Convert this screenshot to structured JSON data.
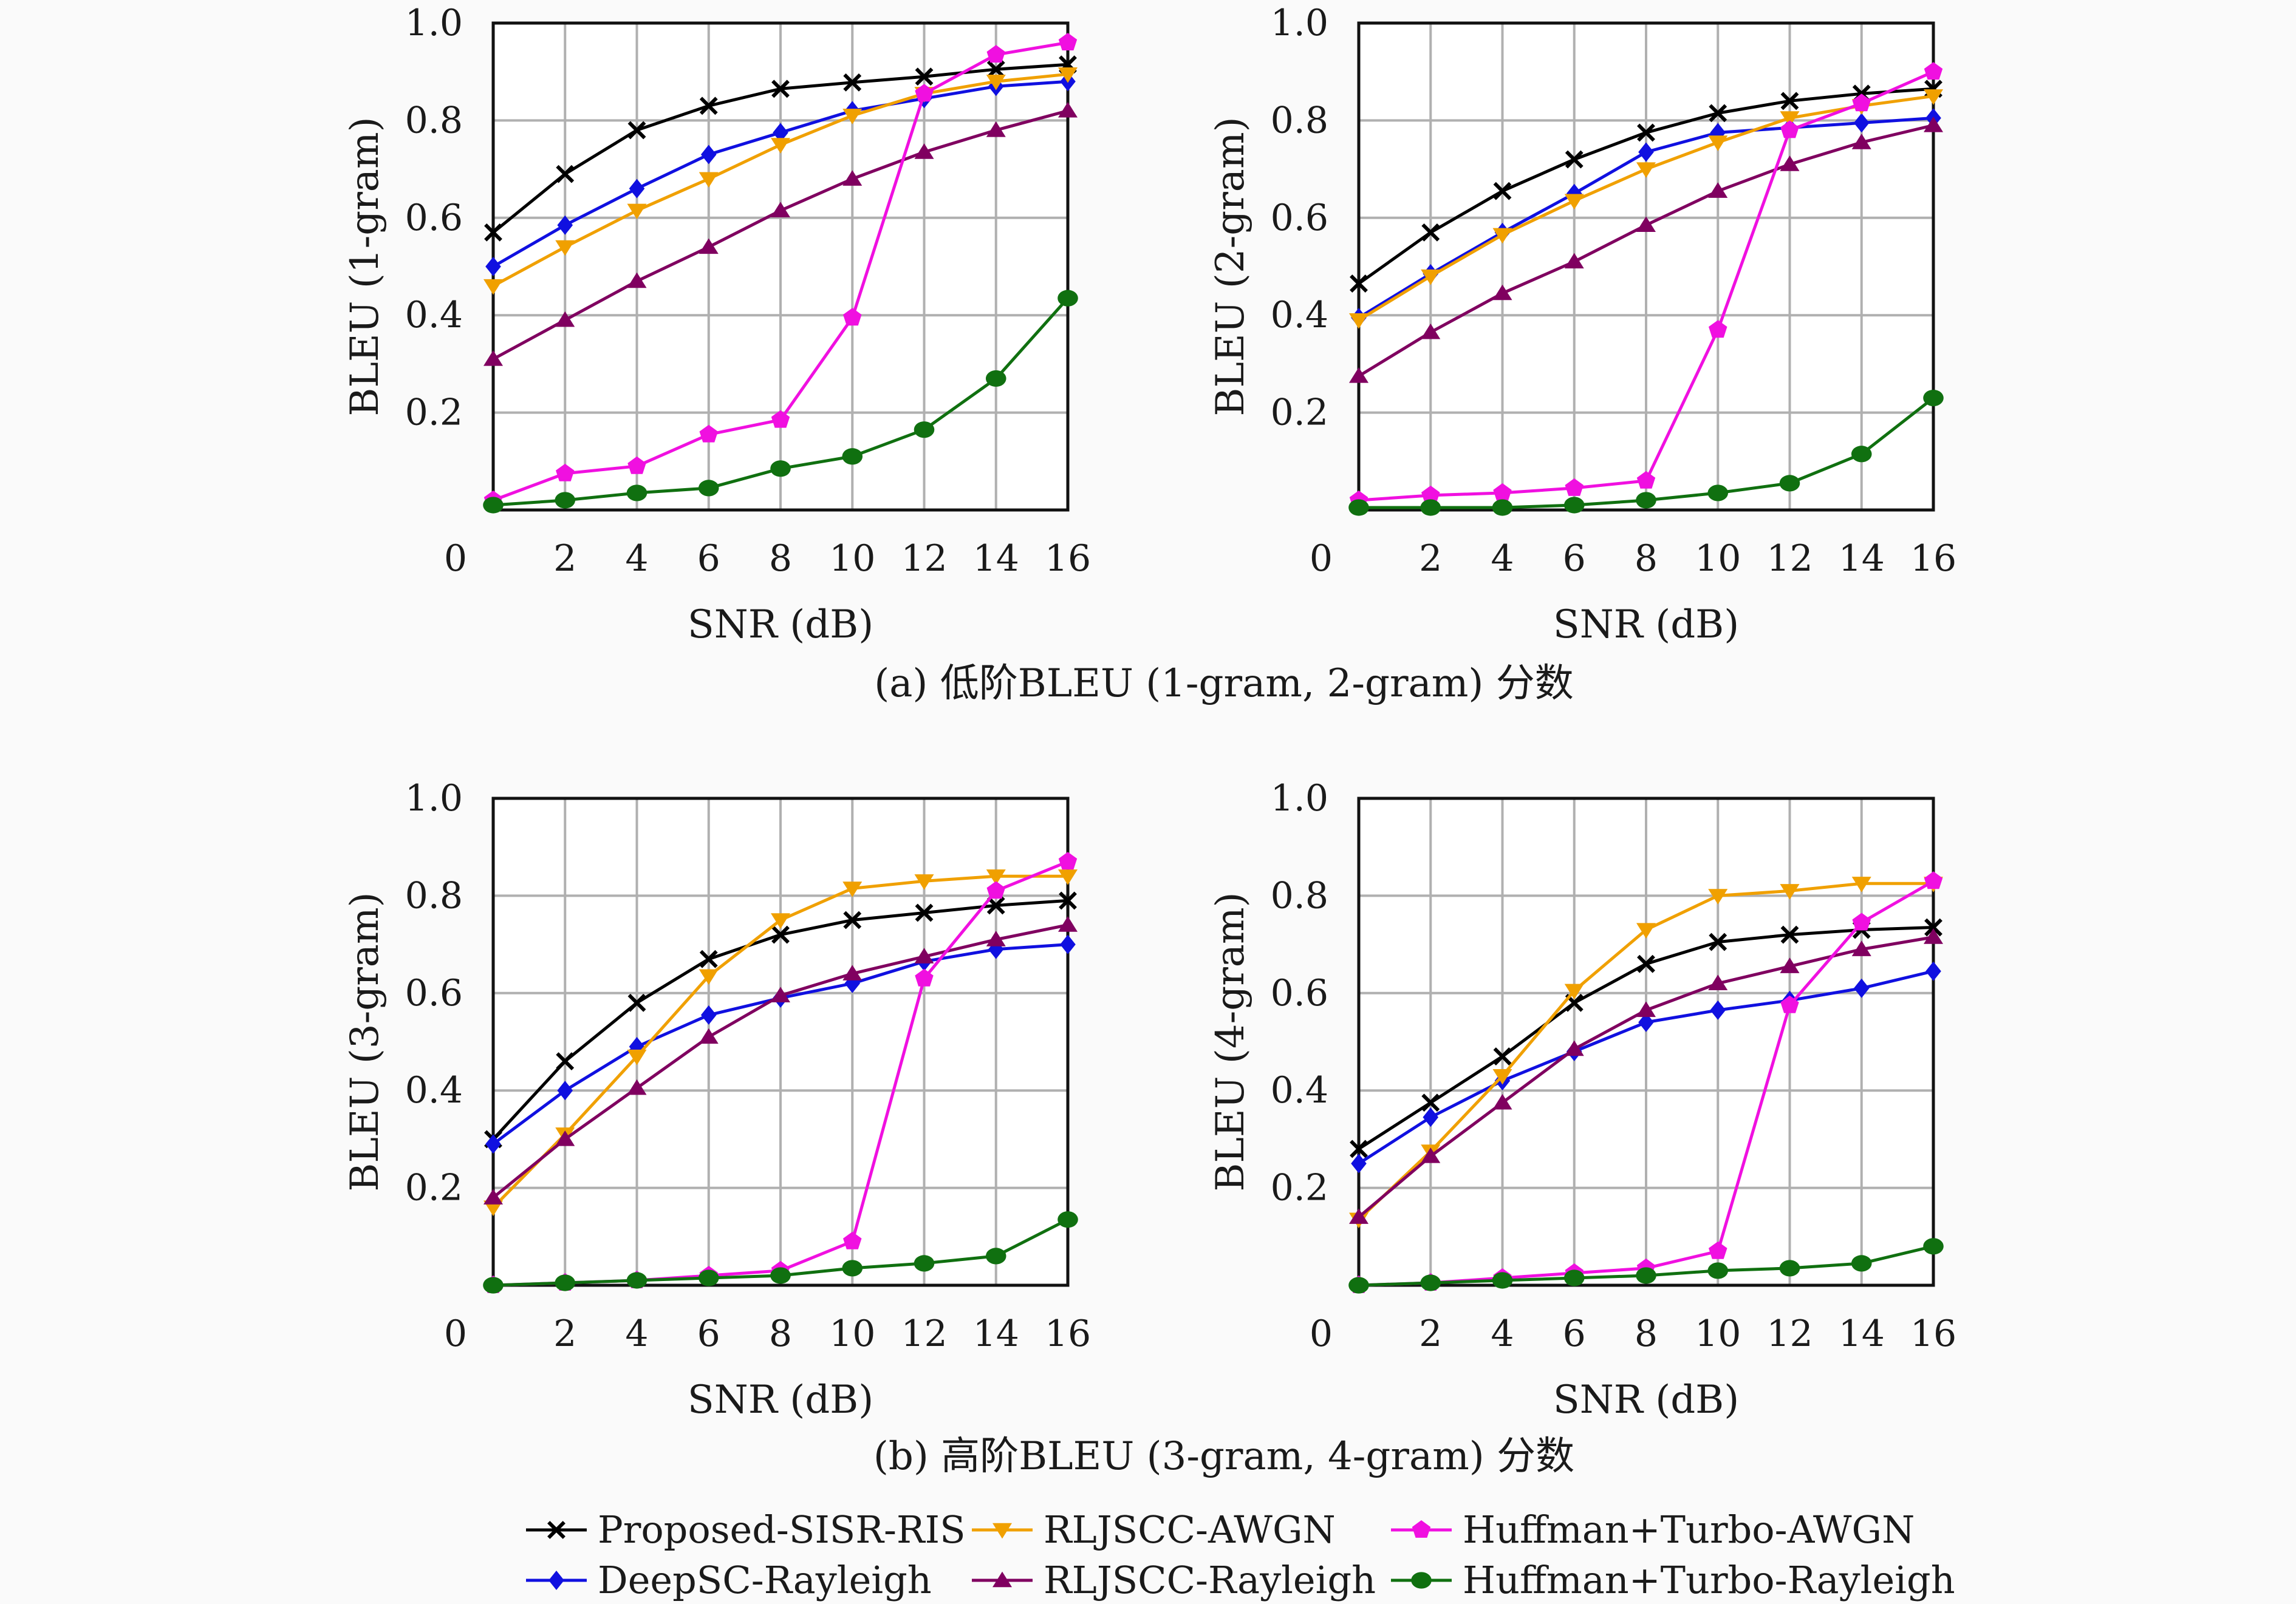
{
  "captions": {
    "a": "(a) 低阶BLEU (1-gram, 2-gram) 分数",
    "b": "(b) 高阶BLEU (3-gram, 4-gram) 分数"
  },
  "legend_entries": [
    {
      "name": "Proposed-SISR-RIS",
      "color": "#000000",
      "marker": "x"
    },
    {
      "name": "DeepSC-Rayleigh",
      "color": "#1010e0",
      "marker": "diamond"
    },
    {
      "name": "RLJSCC-AWGN",
      "color": "#f0a000",
      "marker": "triangle-down"
    },
    {
      "name": "RLJSCC-Rayleigh",
      "color": "#800060",
      "marker": "triangle-up"
    },
    {
      "name": "Huffman+Turbo-AWGN",
      "color": "#f010e0",
      "marker": "pentagon"
    },
    {
      "name": "Huffman+Turbo-Rayleigh",
      "color": "#107010",
      "marker": "circle"
    }
  ],
  "chart_data": [
    {
      "type": "line",
      "xlabel": "SNR (dB)",
      "ylabel": "BLEU (1-gram)",
      "xlim": [
        0,
        16
      ],
      "ylim": [
        0,
        1.0
      ],
      "x_ticks": [
        "0",
        "2",
        "4",
        "6",
        "8",
        "10",
        "12",
        "14",
        "16"
      ],
      "y_ticks": [
        "0.2",
        "0.4",
        "0.6",
        "0.8",
        "1.0"
      ],
      "grid": true,
      "x": [
        0,
        2,
        4,
        6,
        8,
        10,
        12,
        14,
        16
      ],
      "series": [
        {
          "name": "Proposed-SISR-RIS",
          "values": [
            0.57,
            0.69,
            0.78,
            0.83,
            0.865,
            0.878,
            0.89,
            0.905,
            0.915
          ]
        },
        {
          "name": "DeepSC-Rayleigh",
          "values": [
            0.5,
            0.585,
            0.66,
            0.73,
            0.775,
            0.82,
            0.845,
            0.87,
            0.88
          ]
        },
        {
          "name": "RLJSCC-AWGN",
          "values": [
            0.46,
            0.54,
            0.615,
            0.68,
            0.75,
            0.81,
            0.855,
            0.88,
            0.895
          ]
        },
        {
          "name": "RLJSCC-Rayleigh",
          "values": [
            0.31,
            0.39,
            0.47,
            0.54,
            0.615,
            0.68,
            0.735,
            0.78,
            0.82
          ]
        },
        {
          "name": "Huffman+Turbo-AWGN",
          "values": [
            0.02,
            0.075,
            0.09,
            0.155,
            0.185,
            0.395,
            0.855,
            0.935,
            0.96
          ]
        },
        {
          "name": "Huffman+Turbo-Rayleigh",
          "values": [
            0.01,
            0.02,
            0.035,
            0.045,
            0.085,
            0.11,
            0.165,
            0.27,
            0.435
          ]
        }
      ]
    },
    {
      "type": "line",
      "xlabel": "SNR (dB)",
      "ylabel": "BLEU (2-gram)",
      "xlim": [
        0,
        16
      ],
      "ylim": [
        0,
        1.0
      ],
      "x_ticks": [
        "0",
        "2",
        "4",
        "6",
        "8",
        "10",
        "12",
        "14",
        "16"
      ],
      "y_ticks": [
        "0.2",
        "0.4",
        "0.6",
        "0.8",
        "1.0"
      ],
      "grid": true,
      "x": [
        0,
        2,
        4,
        6,
        8,
        10,
        12,
        14,
        16
      ],
      "series": [
        {
          "name": "Proposed-SISR-RIS",
          "values": [
            0.465,
            0.57,
            0.655,
            0.72,
            0.775,
            0.815,
            0.84,
            0.855,
            0.865
          ]
        },
        {
          "name": "DeepSC-Rayleigh",
          "values": [
            0.395,
            0.485,
            0.57,
            0.65,
            0.735,
            0.775,
            0.785,
            0.795,
            0.805
          ]
        },
        {
          "name": "RLJSCC-AWGN",
          "values": [
            0.39,
            0.48,
            0.565,
            0.635,
            0.7,
            0.755,
            0.805,
            0.83,
            0.85
          ]
        },
        {
          "name": "RLJSCC-Rayleigh",
          "values": [
            0.275,
            0.365,
            0.445,
            0.51,
            0.585,
            0.655,
            0.71,
            0.755,
            0.79
          ]
        },
        {
          "name": "Huffman+Turbo-AWGN",
          "values": [
            0.02,
            0.03,
            0.035,
            0.045,
            0.06,
            0.37,
            0.78,
            0.835,
            0.9
          ]
        },
        {
          "name": "Huffman+Turbo-Rayleigh",
          "values": [
            0.005,
            0.005,
            0.005,
            0.01,
            0.02,
            0.035,
            0.055,
            0.115,
            0.23
          ]
        }
      ]
    },
    {
      "type": "line",
      "xlabel": "SNR (dB)",
      "ylabel": "BLEU (3-gram)",
      "xlim": [
        0,
        16
      ],
      "ylim": [
        0,
        1.0
      ],
      "x_ticks": [
        "0",
        "2",
        "4",
        "6",
        "8",
        "10",
        "12",
        "14",
        "16"
      ],
      "y_ticks": [
        "0.2",
        "0.4",
        "0.6",
        "0.8",
        "1.0"
      ],
      "grid": true,
      "x": [
        0,
        2,
        4,
        6,
        8,
        10,
        12,
        14,
        16
      ],
      "series": [
        {
          "name": "Proposed-SISR-RIS",
          "values": [
            0.3,
            0.46,
            0.58,
            0.67,
            0.72,
            0.75,
            0.765,
            0.78,
            0.79
          ]
        },
        {
          "name": "DeepSC-Rayleigh",
          "values": [
            0.29,
            0.4,
            0.49,
            0.555,
            0.59,
            0.62,
            0.665,
            0.69,
            0.7
          ]
        },
        {
          "name": "RLJSCC-AWGN",
          "values": [
            0.16,
            0.31,
            0.47,
            0.635,
            0.75,
            0.815,
            0.83,
            0.84,
            0.84
          ]
        },
        {
          "name": "RLJSCC-Rayleigh",
          "values": [
            0.18,
            0.3,
            0.405,
            0.51,
            0.595,
            0.64,
            0.675,
            0.71,
            0.74
          ]
        },
        {
          "name": "Huffman+Turbo-AWGN",
          "values": [
            0.0,
            0.005,
            0.01,
            0.02,
            0.03,
            0.09,
            0.63,
            0.81,
            0.87
          ]
        },
        {
          "name": "Huffman+Turbo-Rayleigh",
          "values": [
            0.0,
            0.005,
            0.01,
            0.015,
            0.02,
            0.035,
            0.045,
            0.06,
            0.135
          ]
        }
      ]
    },
    {
      "type": "line",
      "xlabel": "SNR (dB)",
      "ylabel": "BLEU (4-gram)",
      "xlim": [
        0,
        16
      ],
      "ylim": [
        0,
        1.0
      ],
      "x_ticks": [
        "0",
        "2",
        "4",
        "6",
        "8",
        "10",
        "12",
        "14",
        "16"
      ],
      "y_ticks": [
        "0.2",
        "0.4",
        "0.6",
        "0.8",
        "1.0"
      ],
      "grid": true,
      "x": [
        0,
        2,
        4,
        6,
        8,
        10,
        12,
        14,
        16
      ],
      "series": [
        {
          "name": "Proposed-SISR-RIS",
          "values": [
            0.28,
            0.375,
            0.47,
            0.58,
            0.66,
            0.705,
            0.72,
            0.73,
            0.735
          ]
        },
        {
          "name": "DeepSC-Rayleigh",
          "values": [
            0.25,
            0.345,
            0.42,
            0.48,
            0.54,
            0.565,
            0.585,
            0.61,
            0.645
          ]
        },
        {
          "name": "RLJSCC-AWGN",
          "values": [
            0.135,
            0.275,
            0.43,
            0.605,
            0.73,
            0.8,
            0.81,
            0.825,
            0.825
          ]
        },
        {
          "name": "RLJSCC-Rayleigh",
          "values": [
            0.14,
            0.265,
            0.375,
            0.485,
            0.565,
            0.62,
            0.655,
            0.69,
            0.715
          ]
        },
        {
          "name": "Huffman+Turbo-AWGN",
          "values": [
            0.0,
            0.005,
            0.015,
            0.025,
            0.035,
            0.07,
            0.575,
            0.745,
            0.83
          ]
        },
        {
          "name": "Huffman+Turbo-Rayleigh",
          "values": [
            0.0,
            0.005,
            0.01,
            0.015,
            0.02,
            0.03,
            0.035,
            0.045,
            0.08
          ]
        }
      ]
    }
  ]
}
